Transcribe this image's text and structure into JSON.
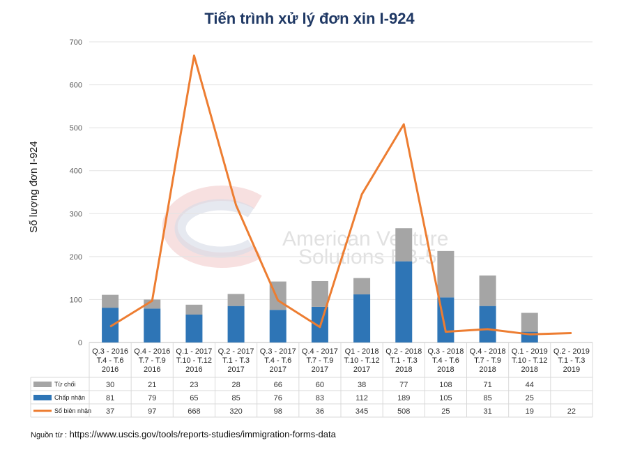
{
  "chart_data": {
    "type": "bar",
    "title": "Tiến trình xử lý đơn xin I-924",
    "ylabel": "Số lượng đơn I-924",
    "ylim": [
      0,
      700
    ],
    "yticks": [
      0,
      100,
      200,
      300,
      400,
      500,
      600,
      700
    ],
    "stacked": true,
    "grid": true,
    "categories": [
      [
        "Q.3 - 2016",
        "T.4 - T.6",
        "2016"
      ],
      [
        "Q.4 - 2016",
        "T.7 - T.9",
        "2016"
      ],
      [
        "Q.1 - 2017",
        "T.10 - T.12",
        "2016"
      ],
      [
        "Q.2 - 2017",
        "T.1 - T.3",
        "2017"
      ],
      [
        "Q.3 - 2017",
        "T.4 - T.6",
        "2017"
      ],
      [
        "Q.4 - 2017",
        "T.7 - T.9",
        "2017"
      ],
      [
        "Q1 - 2018",
        "T.10 - T.12",
        "2017"
      ],
      [
        "Q.2 - 2018",
        "T.1 - T.3",
        "2018"
      ],
      [
        "Q.3 - 2018",
        "T.4 - T.6",
        "2018"
      ],
      [
        "Q.4 - 2018",
        "T.7 - T.9",
        "2018"
      ],
      [
        "Q.1 - 2019",
        "T.10 - T.12",
        "2018"
      ],
      [
        "Q.2 - 2019",
        "T.1 - T.3",
        "2019"
      ]
    ],
    "series": [
      {
        "name": "Từ chối",
        "type": "bar",
        "color": "#a5a5a5",
        "values": [
          30,
          21,
          23,
          28,
          66,
          60,
          38,
          77,
          108,
          71,
          44,
          null
        ]
      },
      {
        "name": "Chấp nhận",
        "type": "bar",
        "color": "#2e75b6",
        "values": [
          81,
          79,
          65,
          85,
          76,
          83,
          112,
          189,
          105,
          85,
          25,
          null
        ]
      },
      {
        "name": "Số biên nhận",
        "type": "line",
        "color": "#ed7d31",
        "values": [
          37,
          97,
          668,
          320,
          98,
          36,
          345,
          508,
          25,
          31,
          19,
          22
        ]
      }
    ],
    "table": {
      "rows": [
        {
          "label": "Từ chối",
          "values": [
            "30",
            "21",
            "23",
            "28",
            "66",
            "60",
            "38",
            "77",
            "108",
            "71",
            "44",
            ""
          ]
        },
        {
          "label": "Chấp nhận",
          "values": [
            "81",
            "79",
            "65",
            "85",
            "76",
            "83",
            "112",
            "189",
            "105",
            "85",
            "25",
            ""
          ]
        },
        {
          "label": "Số biên nhận",
          "values": [
            "37",
            "97",
            "668",
            "320",
            "98",
            "36",
            "345",
            "508",
            "25",
            "31",
            "19",
            "22"
          ]
        }
      ]
    },
    "watermark": {
      "line1": "American Venture",
      "line2": "Solutions EB-5"
    }
  },
  "source": {
    "label": "Nguồn từ :",
    "url": "https://www.uscis.gov/tools/reports-studies/immigration-forms-data"
  }
}
